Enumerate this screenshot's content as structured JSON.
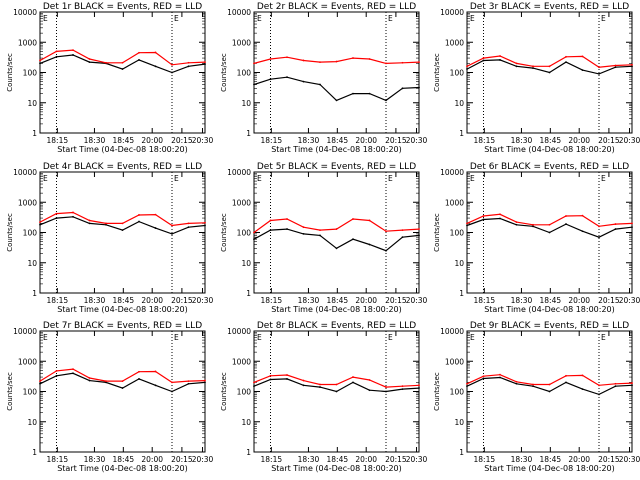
{
  "chart_data": [
    {
      "type": "line",
      "title": "Det 1r BLACK = Events, RED = LLD",
      "xlabel": "Start Time (04-Dec-08 18:00:20)",
      "ylabel": "Counts/sec",
      "xticks": [
        "18:15",
        "18:30",
        "18:45",
        "20:00",
        "20:15",
        "20:30"
      ],
      "yticks": [
        "1",
        "10",
        "100",
        "1000",
        "10000"
      ],
      "ylim": [
        1,
        10000
      ],
      "yscale": "log",
      "grid": false,
      "dotted_markers": [
        1,
        8
      ],
      "marker_label": "E",
      "corner_label": "E",
      "x": [
        0,
        1,
        2,
        3,
        4,
        5,
        6,
        7,
        8,
        9,
        10
      ],
      "series": [
        {
          "color": "#000000",
          "values": [
            200,
            330,
            380,
            220,
            200,
            130,
            260,
            160,
            100,
            160,
            190
          ]
        },
        {
          "color": "#ff0000",
          "values": [
            250,
            500,
            550,
            280,
            210,
            210,
            450,
            460,
            180,
            210,
            220
          ]
        }
      ]
    },
    {
      "type": "line",
      "title": "Det 2r BLACK = Events, RED = LLD",
      "xlabel": "Start Time (04-Dec-08 18:00:20)",
      "ylabel": "Counts/sec",
      "xticks": [
        "18:15",
        "18:30",
        "18:45",
        "20:00",
        "20:15",
        "20:30"
      ],
      "yticks": [
        "1",
        "10",
        "100",
        "1000",
        "10000"
      ],
      "ylim": [
        1,
        10000
      ],
      "yscale": "log",
      "grid": false,
      "dotted_markers": [
        1,
        8
      ],
      "marker_label": "E",
      "corner_label": "E",
      "x": [
        0,
        1,
        2,
        3,
        4,
        5,
        6,
        7,
        8,
        9,
        10
      ],
      "series": [
        {
          "color": "#000000",
          "values": [
            40,
            60,
            70,
            50,
            40,
            12,
            20,
            20,
            12,
            30,
            32
          ]
        },
        {
          "color": "#ff0000",
          "values": [
            200,
            280,
            320,
            250,
            220,
            230,
            300,
            280,
            200,
            210,
            220
          ]
        }
      ]
    },
    {
      "type": "line",
      "title": "Det 3r BLACK = Events, RED = LLD",
      "xlabel": "Start Time (04-Dec-08 18:00:20)",
      "ylabel": "Counts/sec",
      "xticks": [
        "18:15",
        "18:30",
        "18:45",
        "20:00",
        "20:15",
        "20:30"
      ],
      "yticks": [
        "1",
        "10",
        "100",
        "1000",
        "10000"
      ],
      "ylim": [
        1,
        10000
      ],
      "yscale": "log",
      "grid": false,
      "dotted_markers": [
        1,
        8
      ],
      "marker_label": "E",
      "corner_label": "E",
      "x": [
        0,
        1,
        2,
        3,
        4,
        5,
        6,
        7,
        8,
        9,
        10
      ],
      "series": [
        {
          "color": "#000000",
          "values": [
            130,
            250,
            260,
            160,
            140,
            100,
            220,
            120,
            90,
            150,
            160
          ]
        },
        {
          "color": "#ff0000",
          "values": [
            160,
            300,
            350,
            200,
            160,
            160,
            330,
            340,
            150,
            170,
            180
          ]
        }
      ]
    },
    {
      "type": "line",
      "title": "Det 4r BLACK = Events, RED = LLD",
      "xlabel": "Start Time (04-Dec-08 18:00:20)",
      "ylabel": "Counts/sec",
      "xticks": [
        "18:15",
        "18:30",
        "18:45",
        "20:00",
        "20:15",
        "20:30"
      ],
      "yticks": [
        "1",
        "10",
        "100",
        "1000",
        "10000"
      ],
      "ylim": [
        1,
        10000
      ],
      "yscale": "log",
      "grid": false,
      "dotted_markers": [
        1,
        8
      ],
      "marker_label": "E",
      "corner_label": "E",
      "x": [
        0,
        1,
        2,
        3,
        4,
        5,
        6,
        7,
        8,
        9,
        10
      ],
      "series": [
        {
          "color": "#000000",
          "values": [
            180,
            300,
            330,
            200,
            180,
            120,
            230,
            140,
            90,
            150,
            170
          ]
        },
        {
          "color": "#ff0000",
          "values": [
            220,
            420,
            460,
            250,
            200,
            200,
            380,
            390,
            170,
            200,
            210
          ]
        }
      ]
    },
    {
      "type": "line",
      "title": "Det 5r BLACK = Events, RED = LLD",
      "xlabel": "Start Time (04-Dec-08 18:00:20)",
      "ylabel": "Counts/sec",
      "xticks": [
        "18:15",
        "18:30",
        "18:45",
        "20:00",
        "20:15",
        "20:30"
      ],
      "yticks": [
        "1",
        "10",
        "100",
        "1000",
        "10000"
      ],
      "ylim": [
        1,
        10000
      ],
      "yscale": "log",
      "grid": false,
      "dotted_markers": [
        1,
        8
      ],
      "marker_label": "E",
      "corner_label": "E",
      "x": [
        0,
        1,
        2,
        3,
        4,
        5,
        6,
        7,
        8,
        9,
        10
      ],
      "series": [
        {
          "color": "#000000",
          "values": [
            60,
            120,
            130,
            90,
            80,
            30,
            60,
            40,
            25,
            70,
            80
          ]
        },
        {
          "color": "#ff0000",
          "values": [
            100,
            250,
            280,
            150,
            120,
            130,
            280,
            250,
            110,
            120,
            130
          ]
        }
      ]
    },
    {
      "type": "line",
      "title": "Det 6r BLACK = Events, RED = LLD",
      "xlabel": "Start Time (04-Dec-08 18:00:20)",
      "ylabel": "Counts/sec",
      "xticks": [
        "18:15",
        "18:30",
        "18:45",
        "20:00",
        "20:15",
        "20:30"
      ],
      "yticks": [
        "1",
        "10",
        "100",
        "1000",
        "10000"
      ],
      "ylim": [
        1,
        10000
      ],
      "yscale": "log",
      "grid": false,
      "dotted_markers": [
        1,
        8
      ],
      "marker_label": "E",
      "corner_label": "E",
      "x": [
        0,
        1,
        2,
        3,
        4,
        5,
        6,
        7,
        8,
        9,
        10
      ],
      "series": [
        {
          "color": "#000000",
          "values": [
            170,
            270,
            290,
            180,
            160,
            100,
            190,
            110,
            70,
            130,
            150
          ]
        },
        {
          "color": "#ff0000",
          "values": [
            200,
            350,
            400,
            220,
            180,
            180,
            350,
            360,
            160,
            190,
            200
          ]
        }
      ]
    },
    {
      "type": "line",
      "title": "Det 7r BLACK = Events, RED = LLD",
      "xlabel": "Start Time (04-Dec-08 18:00:20)",
      "ylabel": "Counts/sec",
      "xticks": [
        "18:15",
        "18:30",
        "18:45",
        "20:00",
        "20:15",
        "20:30"
      ],
      "yticks": [
        "1",
        "10",
        "100",
        "1000",
        "10000"
      ],
      "ylim": [
        1,
        10000
      ],
      "yscale": "log",
      "grid": false,
      "dotted_markers": [
        1,
        8
      ],
      "marker_label": "E",
      "corner_label": "E",
      "x": [
        0,
        1,
        2,
        3,
        4,
        5,
        6,
        7,
        8,
        9,
        10
      ],
      "series": [
        {
          "color": "#000000",
          "values": [
            180,
            330,
            400,
            230,
            200,
            130,
            260,
            160,
            100,
            180,
            200
          ]
        },
        {
          "color": "#ff0000",
          "values": [
            220,
            480,
            550,
            280,
            220,
            220,
            450,
            460,
            200,
            220,
            230
          ]
        }
      ]
    },
    {
      "type": "line",
      "title": "Det 8r BLACK = Events, RED = LLD",
      "xlabel": "Start Time (04-Dec-08 18:00:20)",
      "ylabel": "Counts/sec",
      "xticks": [
        "18:15",
        "18:30",
        "18:45",
        "20:00",
        "20:15",
        "20:30"
      ],
      "yticks": [
        "1",
        "10",
        "100",
        "1000",
        "10000"
      ],
      "ylim": [
        1,
        10000
      ],
      "yscale": "log",
      "grid": false,
      "dotted_markers": [
        1,
        8
      ],
      "marker_label": "E",
      "corner_label": "E",
      "x": [
        0,
        1,
        2,
        3,
        4,
        5,
        6,
        7,
        8,
        9,
        10
      ],
      "series": [
        {
          "color": "#000000",
          "values": [
            150,
            250,
            260,
            160,
            140,
            100,
            200,
            110,
            100,
            120,
            130
          ]
        },
        {
          "color": "#ff0000",
          "values": [
            200,
            330,
            350,
            230,
            170,
            170,
            300,
            240,
            140,
            150,
            160
          ]
        }
      ]
    },
    {
      "type": "line",
      "title": "Det 9r BLACK = Events, RED = LLD",
      "xlabel": "Start Time (04-Dec-08 18:00:20)",
      "ylabel": "Counts/sec",
      "xticks": [
        "18:15",
        "18:30",
        "18:45",
        "20:00",
        "20:15",
        "20:30"
      ],
      "yticks": [
        "1",
        "10",
        "100",
        "1000",
        "10000"
      ],
      "ylim": [
        1,
        10000
      ],
      "yscale": "log",
      "grid": false,
      "dotted_markers": [
        1,
        8
      ],
      "marker_label": "E",
      "corner_label": "E",
      "x": [
        0,
        1,
        2,
        3,
        4,
        5,
        6,
        7,
        8,
        9,
        10
      ],
      "series": [
        {
          "color": "#000000",
          "values": [
            150,
            270,
            290,
            180,
            150,
            100,
            200,
            120,
            80,
            150,
            160
          ]
        },
        {
          "color": "#ff0000",
          "values": [
            180,
            320,
            360,
            210,
            170,
            170,
            330,
            340,
            160,
            180,
            190
          ]
        }
      ]
    }
  ]
}
